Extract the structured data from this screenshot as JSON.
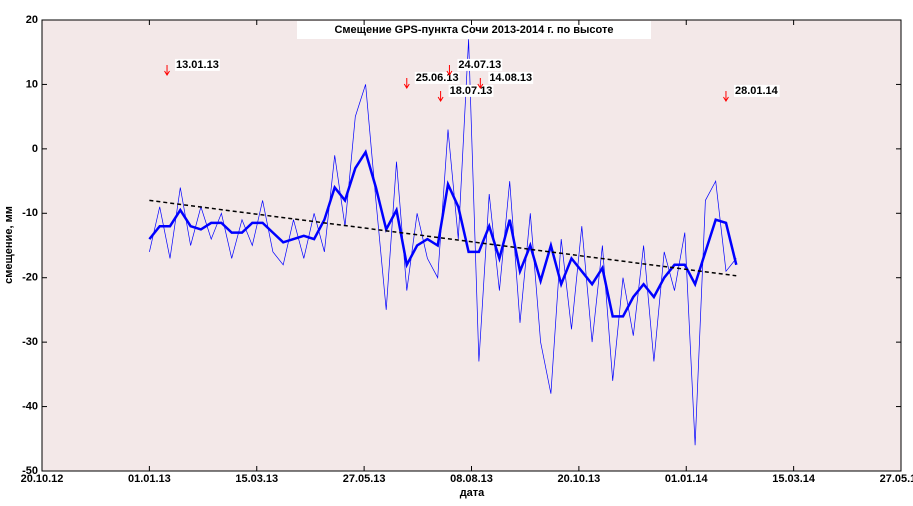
{
  "chart_data": {
    "type": "line",
    "title": "Смещение GPS-пункта Сочи 2013-2014 г. по высоте",
    "xlabel": "дата",
    "ylabel": "смещение, мм",
    "xlim": [
      "20.10.12",
      "27.05.14"
    ],
    "xticks": [
      "20.10.12",
      "01.01.13",
      "15.03.13",
      "27.05.13",
      "08.08.13",
      "20.10.13",
      "01.01.14",
      "15.03.14",
      "27.05.14"
    ],
    "ylim": [
      -50,
      20
    ],
    "yticks": [
      -50,
      -40,
      -30,
      -20,
      -10,
      0,
      10,
      20
    ],
    "x": [
      "01.01.13",
      "08.01.13",
      "15.01.13",
      "22.01.13",
      "29.01.13",
      "05.02.13",
      "12.02.13",
      "19.02.13",
      "26.02.13",
      "05.03.13",
      "12.03.13",
      "19.03.13",
      "26.03.13",
      "02.04.13",
      "09.04.13",
      "16.04.13",
      "23.04.13",
      "30.04.13",
      "07.05.13",
      "14.05.13",
      "21.05.13",
      "28.05.13",
      "04.06.13",
      "11.06.13",
      "18.06.13",
      "25.06.13",
      "02.07.13",
      "09.07.13",
      "16.07.13",
      "23.07.13",
      "30.07.13",
      "06.08.13",
      "13.08.13",
      "20.08.13",
      "27.08.13",
      "03.09.13",
      "10.09.13",
      "17.09.13",
      "24.09.13",
      "01.10.13",
      "08.10.13",
      "15.10.13",
      "22.10.13",
      "29.10.13",
      "05.11.13",
      "12.11.13",
      "19.11.13",
      "26.11.13",
      "03.12.13",
      "10.12.13",
      "17.12.13",
      "24.12.13",
      "31.12.13",
      "07.01.14",
      "14.01.14",
      "21.01.14",
      "28.01.14",
      "04.02.14"
    ],
    "series": [
      {
        "color": "#0000ff",
        "width": 0.7,
        "values": [
          -16,
          -9,
          -17,
          -6,
          -15,
          -9,
          -14,
          -10,
          -17,
          -11,
          -15,
          -8,
          -16,
          -18,
          -11,
          -17,
          -10,
          -16,
          -1,
          -12,
          5,
          10,
          -8,
          -25,
          -2,
          -22,
          -10,
          -17,
          -20,
          3,
          -14,
          17,
          -33,
          -7,
          -22,
          -5,
          -27,
          -10,
          -30,
          -38,
          -14,
          -28,
          -12,
          -30,
          -15,
          -36,
          -20,
          -29,
          -15,
          -33,
          -16,
          -22,
          -13,
          -46,
          -8,
          -5,
          -19,
          -17
        ]
      },
      {
        "color": "#0000ff",
        "width": 2.5,
        "values": [
          -14,
          -12,
          -12,
          -9.5,
          -12,
          -12.5,
          -11.5,
          -11.5,
          -13,
          -13,
          -11.5,
          -11.5,
          -13,
          -14.5,
          -14,
          -13.5,
          -14,
          -11,
          -6,
          -8,
          -3,
          -0.5,
          -6,
          -12.5,
          -9.5,
          -18,
          -15,
          -14,
          -15,
          -5.5,
          -9,
          -16,
          -16,
          -12,
          -17,
          -11,
          -19,
          -15,
          -20.5,
          -15,
          -21,
          -17,
          -19,
          -21,
          -18.5,
          -26,
          -26,
          -23,
          -21,
          -23,
          -20,
          -18,
          -18,
          -21,
          -16,
          -11,
          -11.5,
          -18
        ]
      }
    ],
    "trend": {
      "x": [
        "01.01.13",
        "04.02.14"
      ],
      "values": [
        -8,
        -19.7
      ],
      "color": "#000000"
    },
    "annotations": [
      {
        "text": "13.01.13"
      },
      {
        "text": "25.06.13"
      },
      {
        "text": "24.07.13"
      },
      {
        "text": "18.07.13"
      },
      {
        "text": "14.08.13"
      },
      {
        "text": "28.01.14"
      }
    ],
    "annotation_color": "#ff0000",
    "background": "#f3e8e8"
  }
}
